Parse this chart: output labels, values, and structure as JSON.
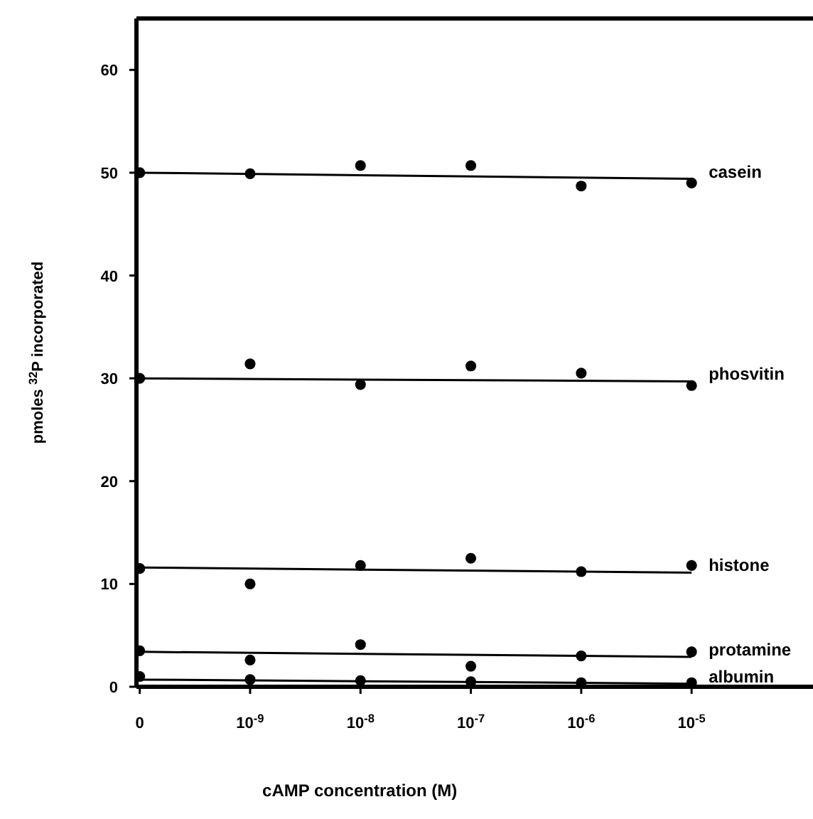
{
  "chart_data": {
    "type": "scatter",
    "xlabel": "cAMP concentration (M)",
    "ylabel": "pmoles $^{32}$P incorporated",
    "categories": [
      "0",
      "10$^{-9}$",
      "10$^{-8}$",
      "10$^{-7}$",
      "10$^{-6}$",
      "10$^{-5}$"
    ],
    "ylim": [
      0,
      65
    ],
    "yticks": [
      0,
      10,
      20,
      30,
      40,
      50,
      60
    ],
    "grid": false,
    "legend": false,
    "marker": "circle",
    "line_style": "solid",
    "series": [
      {
        "color": "#000000",
        "values": [
          50.0,
          49.9,
          50.7,
          50.7,
          48.7,
          49.0
        ]
      },
      {
        "type": "line",
        "marker": "none",
        "name": "casein",
        "color": "#000000",
        "values": [
          50.0,
          null,
          null,
          null,
          null,
          49.4
        ]
      },
      {
        "color": "#000000",
        "values": [
          30.0,
          31.4,
          29.4,
          31.2,
          30.5,
          29.3
        ]
      },
      {
        "type": "line",
        "marker": "none",
        "name": "phosvitin",
        "color": "#000000",
        "values": [
          30.0,
          null,
          null,
          null,
          null,
          29.7
        ]
      },
      {
        "color": "#000000",
        "values": [
          11.5,
          10.0,
          11.8,
          12.5,
          11.2,
          11.8
        ]
      },
      {
        "type": "line",
        "marker": "none",
        "name": "histone",
        "color": "#000000",
        "values": [
          11.6,
          null,
          null,
          null,
          null,
          11.1
        ]
      },
      {
        "color": "#000000",
        "values": [
          3.5,
          2.6,
          4.1,
          2.0,
          3.0,
          3.4
        ]
      },
      {
        "type": "line",
        "marker": "none",
        "name": "protamine",
        "color": "#000000",
        "values": [
          3.4,
          null,
          null,
          null,
          null,
          2.9
        ]
      },
      {
        "color": "#000000",
        "values": [
          1.0,
          0.7,
          0.6,
          0.5,
          0.4,
          0.4
        ]
      },
      {
        "type": "line",
        "marker": "none",
        "name": "albumin",
        "color": "#000000",
        "values": [
          0.7,
          null,
          null,
          null,
          null,
          0.3
        ]
      }
    ]
  }
}
